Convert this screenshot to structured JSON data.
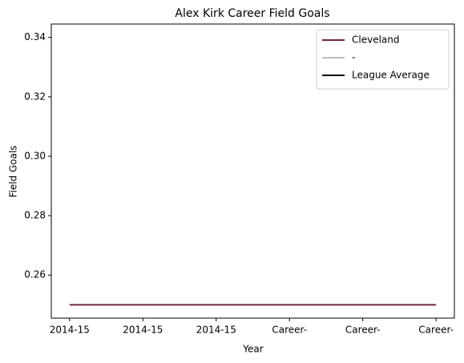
{
  "chart_data": {
    "type": "line",
    "title": "Alex Kirk Career Field Goals",
    "x_label": "Year",
    "y_label": "Field Goals",
    "categories": [
      "2014-15",
      "2014-15",
      "2014-15",
      "Career-",
      "Career-",
      "Career-"
    ],
    "series": [
      {
        "name": "Cleveland",
        "color": "#6f263d",
        "values": [
          0.25,
          0.25,
          0.25,
          0.25,
          0.25,
          0.25
        ]
      },
      {
        "name": "-",
        "color": "#bfbfbf",
        "values": [
          null,
          null,
          null,
          null,
          null,
          null
        ]
      },
      {
        "name": "League Average",
        "color": "#000000",
        "values": [
          null,
          null,
          null,
          null,
          null,
          null
        ]
      }
    ],
    "ylim": [
      0.2455,
      0.3445
    ],
    "yticks": [
      0.26,
      0.28,
      {
        "value": 0.3,
        "label": "0.30"
      },
      0.32,
      0.34
    ],
    "legend": "upper right",
    "grid": false
  }
}
